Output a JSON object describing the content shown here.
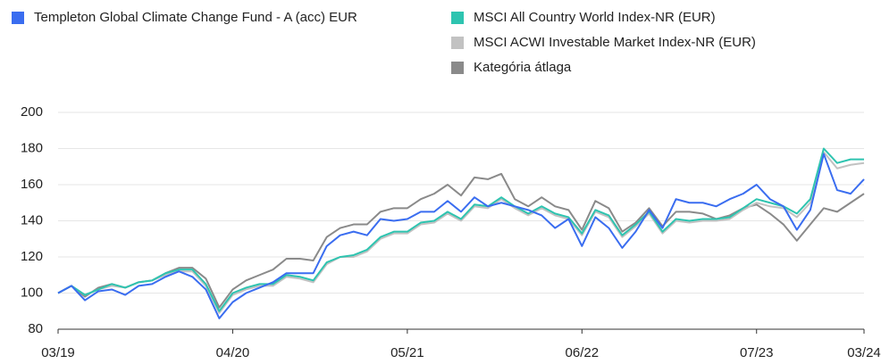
{
  "chart_data": {
    "type": "line",
    "categories": [
      "03/19",
      null,
      null,
      null,
      null,
      null,
      null,
      null,
      null,
      null,
      null,
      null,
      null,
      "04/20",
      null,
      null,
      null,
      null,
      null,
      null,
      null,
      null,
      null,
      null,
      null,
      null,
      "05/21",
      null,
      null,
      null,
      null,
      null,
      null,
      null,
      null,
      null,
      null,
      null,
      null,
      "06/22",
      null,
      null,
      null,
      null,
      null,
      null,
      null,
      null,
      null,
      null,
      null,
      null,
      "07/23",
      null,
      null,
      null,
      null,
      null,
      null,
      null,
      "03/24"
    ],
    "series": [
      {
        "name": "Templeton Global Climate Change Fund - A (acc) EUR",
        "color": "#3a6df0",
        "values": [
          100,
          104,
          96,
          101,
          102,
          99,
          104,
          105,
          109,
          112,
          109,
          102,
          86,
          95,
          100,
          103,
          106,
          111,
          111,
          111,
          126,
          132,
          134,
          132,
          141,
          140,
          141,
          145,
          145,
          151,
          145,
          153,
          148,
          150,
          148,
          146,
          143,
          136,
          141,
          126,
          142,
          136,
          125,
          134,
          146,
          136,
          152,
          150,
          150,
          148,
          152,
          155,
          160,
          152,
          148,
          135,
          146,
          177,
          157,
          155,
          163
        ]
      },
      {
        "name": "MSCI All Country World Index-NR (EUR)",
        "color": "#2ec4b0",
        "values": [
          100,
          104,
          99,
          102,
          105,
          103,
          106,
          107,
          111,
          113,
          113,
          105,
          90,
          100,
          103,
          105,
          105,
          110,
          109,
          107,
          117,
          120,
          121,
          124,
          131,
          134,
          134,
          139,
          140,
          145,
          141,
          149,
          148,
          153,
          148,
          144,
          148,
          144,
          142,
          133,
          146,
          143,
          132,
          138,
          145,
          134,
          141,
          140,
          141,
          141,
          142,
          147,
          152,
          150,
          148,
          144,
          152,
          180,
          172,
          174,
          174
        ]
      },
      {
        "name": "MSCI ACWI Investable Market Index-NR (EUR)",
        "color": "#c2c2c2",
        "values": [
          100,
          104,
          99,
          102,
          104,
          103,
          106,
          107,
          110,
          112,
          112,
          104,
          89,
          99,
          102,
          104,
          104,
          109,
          108,
          106,
          116,
          120,
          120,
          123,
          130,
          133,
          133,
          138,
          139,
          144,
          140,
          148,
          147,
          152,
          147,
          143,
          147,
          143,
          141,
          132,
          145,
          142,
          131,
          137,
          144,
          133,
          140,
          139,
          140,
          140,
          141,
          146,
          150,
          148,
          147,
          142,
          150,
          178,
          169,
          171,
          172
        ]
      },
      {
        "name": "Kategória átlaga",
        "color": "#8a8a8a",
        "values": [
          100,
          104,
          98,
          103,
          105,
          103,
          106,
          107,
          111,
          114,
          114,
          108,
          92,
          102,
          107,
          110,
          113,
          119,
          119,
          118,
          131,
          136,
          138,
          138,
          145,
          147,
          147,
          152,
          155,
          160,
          154,
          164,
          163,
          166,
          152,
          148,
          153,
          148,
          146,
          135,
          151,
          147,
          134,
          139,
          147,
          137,
          145,
          145,
          144,
          141,
          143,
          147,
          149,
          144,
          138,
          129,
          138,
          147,
          145,
          150,
          155
        ]
      }
    ],
    "ylim": [
      80,
      200
    ],
    "yticks": [
      80,
      100,
      120,
      140,
      160,
      180,
      200
    ],
    "grid": true
  }
}
